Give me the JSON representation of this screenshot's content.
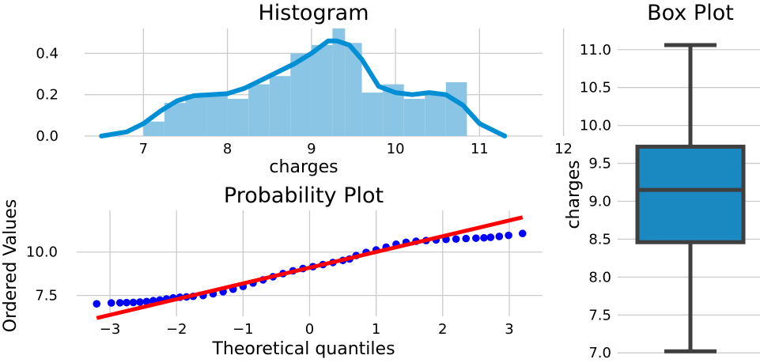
{
  "chart_data": [
    {
      "type": "bar",
      "title": "Histogram",
      "xlabel": "charges",
      "ylabel": "",
      "xlim": [
        6.3,
        11.75
      ],
      "ylim": [
        0,
        0.52
      ],
      "xticks": [
        "7",
        "8",
        "9",
        "10",
        "11",
        "12"
      ],
      "yticks": [
        "0.0",
        "0.2",
        "0.4"
      ],
      "bins": [
        {
          "x0": 7.0,
          "x1": 7.25,
          "value": 0.07
        },
        {
          "x0": 7.25,
          "x1": 7.5,
          "value": 0.16
        },
        {
          "x0": 7.5,
          "x1": 7.75,
          "value": 0.2
        },
        {
          "x0": 7.75,
          "x1": 8.0,
          "value": 0.2
        },
        {
          "x0": 8.0,
          "x1": 8.25,
          "value": 0.18
        },
        {
          "x0": 8.25,
          "x1": 8.5,
          "value": 0.25
        },
        {
          "x0": 8.5,
          "x1": 8.75,
          "value": 0.29
        },
        {
          "x0": 8.75,
          "x1": 9.0,
          "value": 0.4
        },
        {
          "x0": 9.0,
          "x1": 9.25,
          "value": 0.44
        },
        {
          "x0": 9.25,
          "x1": 9.4,
          "value": 0.52
        },
        {
          "x0": 9.4,
          "x1": 9.6,
          "value": 0.45
        },
        {
          "x0": 9.6,
          "x1": 9.85,
          "value": 0.21
        },
        {
          "x0": 9.85,
          "x1": 10.1,
          "value": 0.25
        },
        {
          "x0": 10.1,
          "x1": 10.35,
          "value": 0.18
        },
        {
          "x0": 10.35,
          "x1": 10.6,
          "value": 0.2
        },
        {
          "x0": 10.6,
          "x1": 10.85,
          "value": 0.26
        }
      ],
      "kde": {
        "x": [
          6.5,
          6.8,
          7.0,
          7.2,
          7.4,
          7.6,
          7.8,
          8.0,
          8.2,
          8.4,
          8.6,
          8.8,
          9.0,
          9.1,
          9.2,
          9.3,
          9.45,
          9.6,
          9.8,
          10.0,
          10.2,
          10.4,
          10.6,
          10.8,
          11.0,
          11.3
        ],
        "y": [
          0.0,
          0.02,
          0.06,
          0.12,
          0.17,
          0.195,
          0.2,
          0.205,
          0.23,
          0.27,
          0.31,
          0.35,
          0.4,
          0.43,
          0.46,
          0.46,
          0.44,
          0.37,
          0.24,
          0.21,
          0.2,
          0.21,
          0.2,
          0.15,
          0.06,
          0.0
        ]
      },
      "colors": {
        "bar": "#8bc5e6",
        "line": "#008fd5"
      }
    },
    {
      "type": "scatter",
      "title": "Probability Plot",
      "xlabel": "Theoretical quantiles",
      "ylabel": "Ordered Values",
      "xlim": [
        -3.5,
        3.5
      ],
      "ylim": [
        6.3,
        12.4
      ],
      "xticks": [
        {
          "v": -3,
          "label": "−3"
        },
        {
          "v": -2,
          "label": "−2"
        },
        {
          "v": -1,
          "label": "−1"
        },
        {
          "v": 0,
          "label": "0"
        },
        {
          "v": 1,
          "label": "1"
        },
        {
          "v": 2,
          "label": "2"
        },
        {
          "v": 3,
          "label": "3"
        }
      ],
      "yticks": [
        {
          "v": 7.5,
          "label": "7.5"
        },
        {
          "v": 10.0,
          "label": "10.0"
        }
      ],
      "points": [
        [
          -3.2,
          7.02
        ],
        [
          -2.98,
          7.07
        ],
        [
          -2.85,
          7.08
        ],
        [
          -2.75,
          7.09
        ],
        [
          -2.65,
          7.1
        ],
        [
          -2.55,
          7.12
        ],
        [
          -2.45,
          7.15
        ],
        [
          -2.35,
          7.2
        ],
        [
          -2.25,
          7.24
        ],
        [
          -2.15,
          7.3
        ],
        [
          -2.05,
          7.36
        ],
        [
          -1.95,
          7.4
        ],
        [
          -1.85,
          7.42
        ],
        [
          -1.75,
          7.45
        ],
        [
          -1.6,
          7.5
        ],
        [
          -1.45,
          7.6
        ],
        [
          -1.3,
          7.72
        ],
        [
          -1.15,
          7.86
        ],
        [
          -1.0,
          8.02
        ],
        [
          -0.85,
          8.22
        ],
        [
          -0.7,
          8.4
        ],
        [
          -0.55,
          8.58
        ],
        [
          -0.4,
          8.76
        ],
        [
          -0.25,
          8.92
        ],
        [
          -0.1,
          9.05
        ],
        [
          0.05,
          9.16
        ],
        [
          0.2,
          9.28
        ],
        [
          0.35,
          9.4
        ],
        [
          0.5,
          9.52
        ],
        [
          0.6,
          9.6
        ],
        [
          0.7,
          9.8
        ],
        [
          0.85,
          9.98
        ],
        [
          1.0,
          10.12
        ],
        [
          1.15,
          10.28
        ],
        [
          1.3,
          10.45
        ],
        [
          1.45,
          10.56
        ],
        [
          1.6,
          10.62
        ],
        [
          1.75,
          10.66
        ],
        [
          1.9,
          10.7
        ],
        [
          2.05,
          10.73
        ],
        [
          2.2,
          10.75
        ],
        [
          2.35,
          10.78
        ],
        [
          2.5,
          10.8
        ],
        [
          2.62,
          10.82
        ],
        [
          2.72,
          10.85
        ],
        [
          2.85,
          10.9
        ],
        [
          2.99,
          10.96
        ],
        [
          3.2,
          11.07
        ]
      ],
      "fit_line": {
        "x": [
          -3.2,
          3.2
        ],
        "y": [
          6.2,
          12.0
        ]
      },
      "colors": {
        "points": "#0000ff",
        "line": "#ff0000"
      }
    },
    {
      "type": "box",
      "title": "Box Plot",
      "ylabel": "charges",
      "ylim": [
        6.95,
        11.3
      ],
      "yticks": [
        "7.0",
        "7.5",
        "8.0",
        "8.5",
        "9.0",
        "9.5",
        "10.0",
        "10.5",
        "11.0"
      ],
      "min": 7.02,
      "q1": 8.46,
      "median": 9.15,
      "q3": 9.72,
      "max": 11.06,
      "colors": {
        "box": "#1a89c1",
        "edge": "#3f3f3f"
      }
    }
  ]
}
